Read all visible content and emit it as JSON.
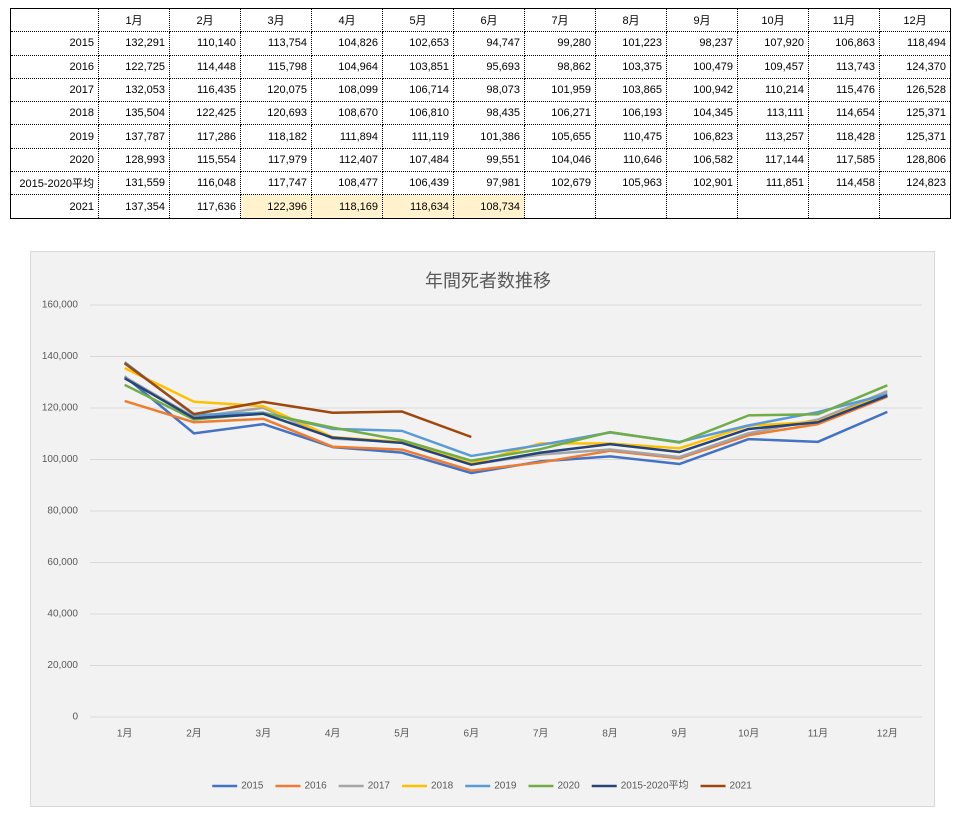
{
  "table": {
    "header": [
      "1月",
      "2月",
      "3月",
      "4月",
      "5月",
      "6月",
      "7月",
      "8月",
      "9月",
      "10月",
      "11月",
      "12月"
    ],
    "rows": [
      {
        "label": "2015",
        "cells": [
          "132,291",
          "110,140",
          "113,754",
          "104,826",
          "102,653",
          "94,747",
          "99,280",
          "101,223",
          "98,237",
          "107,920",
          "106,863",
          "118,494"
        ]
      },
      {
        "label": "2016",
        "cells": [
          "122,725",
          "114,448",
          "115,798",
          "104,964",
          "103,851",
          "95,693",
          "98,862",
          "103,375",
          "100,479",
          "109,457",
          "113,743",
          "124,370"
        ]
      },
      {
        "label": "2017",
        "cells": [
          "132,053",
          "116,435",
          "120,075",
          "108,099",
          "106,714",
          "98,073",
          "101,959",
          "103,865",
          "100,942",
          "110,214",
          "115,476",
          "126,528"
        ]
      },
      {
        "label": "2018",
        "cells": [
          "135,504",
          "122,425",
          "120,693",
          "108,670",
          "106,810",
          "98,435",
          "106,271",
          "106,193",
          "104,345",
          "113,111",
          "114,654",
          "125,371"
        ]
      },
      {
        "label": "2019",
        "cells": [
          "137,787",
          "117,286",
          "118,182",
          "111,894",
          "111,119",
          "101,386",
          "105,655",
          "110,475",
          "106,823",
          "113,257",
          "118,428",
          "125,371"
        ]
      },
      {
        "label": "2020",
        "cells": [
          "128,993",
          "115,554",
          "117,979",
          "112,407",
          "107,484",
          "99,551",
          "104,046",
          "110,646",
          "106,582",
          "117,144",
          "117,585",
          "128,806"
        ]
      },
      {
        "label": "2015-2020平均",
        "cells": [
          "131,559",
          "116,048",
          "117,747",
          "108,477",
          "106,439",
          "97,981",
          "102,679",
          "105,963",
          "102,901",
          "111,851",
          "114,458",
          "124,823"
        ]
      },
      {
        "label": "2021",
        "cells": [
          "137,354",
          "117,636",
          "122,396",
          "118,169",
          "118,634",
          "108,734"
        ]
      }
    ]
  },
  "chart_data": {
    "type": "line",
    "title": "年間死者数推移",
    "categories": [
      "1月",
      "2月",
      "3月",
      "4月",
      "5月",
      "6月",
      "7月",
      "8月",
      "9月",
      "10月",
      "11月",
      "12月"
    ],
    "series": [
      {
        "name": "2015",
        "color": "#4472c4",
        "values": [
          132291,
          110140,
          113754,
          104826,
          102653,
          94747,
          99280,
          101223,
          98237,
          107920,
          106863,
          118494
        ]
      },
      {
        "name": "2016",
        "color": "#ed7d31",
        "values": [
          122725,
          114448,
          115798,
          104964,
          103851,
          95693,
          98862,
          103375,
          100479,
          109457,
          113743,
          124370
        ]
      },
      {
        "name": "2017",
        "color": "#a5a5a5",
        "values": [
          132053,
          116435,
          120075,
          108099,
          106714,
          98073,
          101959,
          103865,
          100942,
          110214,
          115476,
          126528
        ]
      },
      {
        "name": "2018",
        "color": "#ffc000",
        "values": [
          135504,
          122425,
          120693,
          108670,
          106810,
          98435,
          106271,
          106193,
          104345,
          113111,
          114654,
          125371
        ]
      },
      {
        "name": "2019",
        "color": "#5b9bd5",
        "values": [
          137787,
          117286,
          118182,
          111894,
          111119,
          101386,
          105655,
          110475,
          106823,
          113257,
          118428,
          125371
        ]
      },
      {
        "name": "2020",
        "color": "#70ad47",
        "values": [
          128993,
          115554,
          117979,
          112407,
          107484,
          99551,
          104046,
          110646,
          106582,
          117144,
          117585,
          128806
        ]
      },
      {
        "name": "2015-2020平均",
        "color": "#264478",
        "values": [
          131559,
          116048,
          117747,
          108477,
          106439,
          97981,
          102679,
          105963,
          102901,
          111851,
          114458,
          124823
        ]
      },
      {
        "name": "2021",
        "color": "#9e480e",
        "values": [
          137354,
          117636,
          122396,
          118169,
          118634,
          108734,
          null,
          null,
          null,
          null,
          null,
          null
        ]
      }
    ],
    "ylim": [
      0,
      160000
    ],
    "yticks": [
      0,
      {
        "value": 20000,
        "label": "20,000"
      },
      {
        "value": 40000,
        "label": "40,000"
      },
      {
        "value": 60000,
        "label": "60,000"
      },
      {
        "value": 80000,
        "label": "80,000"
      },
      {
        "value": 100000,
        "label": "100,000"
      },
      {
        "value": 120000,
        "label": "120,000"
      },
      {
        "value": 140000,
        "label": "140,000"
      },
      {
        "value": 160000,
        "label": "160,000"
      }
    ],
    "grid": true,
    "legend": "bottom"
  }
}
